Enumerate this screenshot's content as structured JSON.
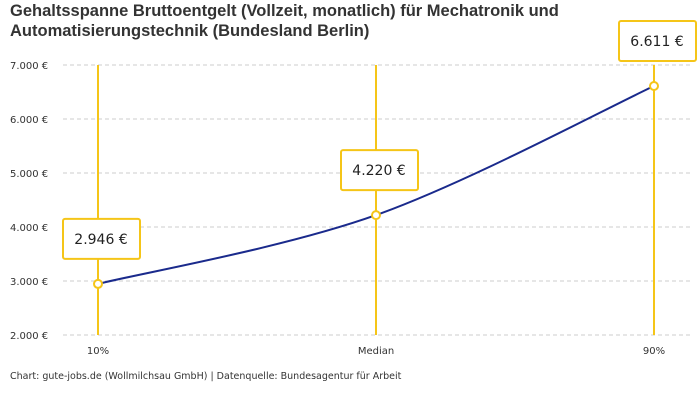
{
  "title": "Gehaltsspanne Bruttoentgelt (Vollzeit, monatlich) für Mechatronik und Automatisierungstechnik (Bundesland Berlin)",
  "footer": "Chart: gute-jobs.de (Wollmilchsau GmbH) | Datenquelle: Bundesagentur für Arbeit",
  "chart_data": {
    "type": "line",
    "categories": [
      "10%",
      "Median",
      "90%"
    ],
    "values": [
      2946,
      4220,
      6611
    ],
    "data_labels": [
      "2.946 €",
      "4.220 €",
      "6.611 €"
    ],
    "yticks": [
      2000,
      3000,
      4000,
      5000,
      6000,
      7000
    ],
    "ytick_labels": [
      "2.000 €",
      "3.000 €",
      "4.000 €",
      "5.000 €",
      "6.000 €",
      "7.000 €"
    ],
    "ylim": [
      2000,
      7000
    ],
    "grid": true,
    "colors": {
      "line": "#1a2a8c",
      "marker": "#f5c518",
      "grid": "#cccccc"
    }
  }
}
